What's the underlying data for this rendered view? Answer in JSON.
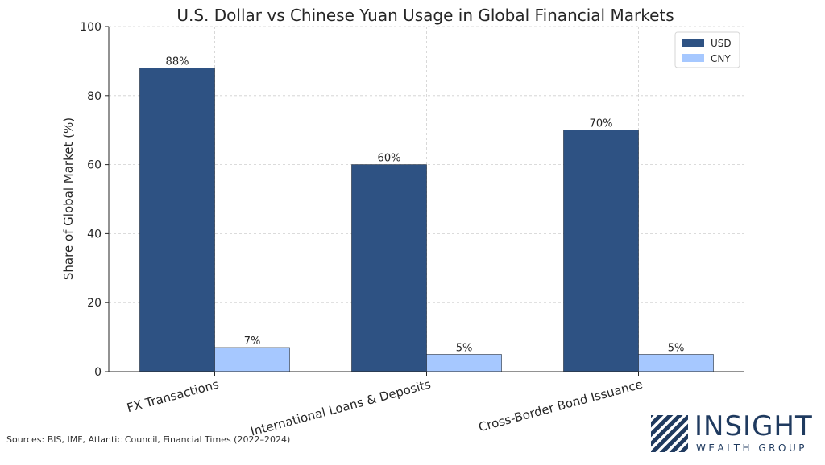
{
  "chart_data": {
    "type": "bar",
    "title": "U.S. Dollar vs Chinese Yuan Usage in Global Financial Markets",
    "xlabel": "",
    "ylabel": "Share of Global Market (%)",
    "categories": [
      "FX Transactions",
      "International Loans & Deposits",
      "Cross-Border Bond Issuance"
    ],
    "series": [
      {
        "name": "USD",
        "values": [
          88,
          60,
          70
        ],
        "labels": [
          "88%",
          "60%",
          "70%"
        ],
        "color": "#2e5283"
      },
      {
        "name": "CNY",
        "values": [
          7,
          5,
          5
        ],
        "labels": [
          "7%",
          "5%",
          "5%"
        ],
        "color": "#a6c8ff"
      }
    ],
    "ylim": [
      0,
      100
    ],
    "yticks": [
      0,
      20,
      40,
      60,
      80,
      100
    ],
    "grid": true,
    "legend_position": "top-right"
  },
  "source_note": "Sources: BIS, IMF, Atlantic Council, Financial Times (2022–2024)",
  "logo": {
    "word": "INSIGHT",
    "subtitle": "WEALTH GROUP",
    "color": "#1f3a5f"
  }
}
